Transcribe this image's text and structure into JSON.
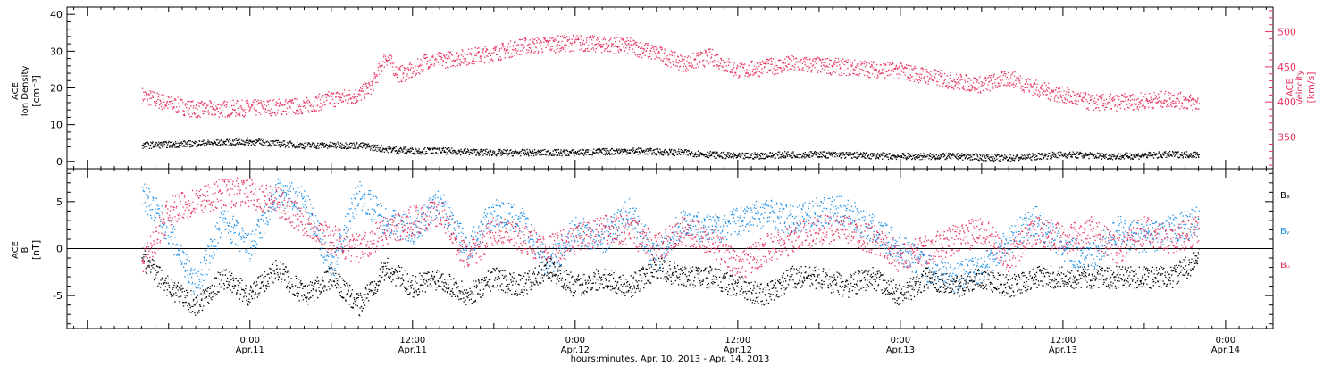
{
  "chart_data": [
    {
      "type": "scatter",
      "panel": "plasma",
      "ylabel_left": [
        "ACE",
        "Ion Density",
        "[cm⁻³]"
      ],
      "ylabel_right": [
        "ACE",
        "Velocity",
        "[km/s]"
      ],
      "ylim_left": [
        -2,
        42
      ],
      "ylim_right": [
        305,
        535
      ],
      "yticks_left": [
        "0",
        "10",
        "20",
        "30",
        "40"
      ],
      "yticks_left_values": [
        0,
        10,
        20,
        30,
        40
      ],
      "yticks_right": [
        "350",
        "400",
        "450",
        "500"
      ],
      "yticks_right_values": [
        350,
        400,
        450,
        500
      ],
      "series": [
        {
          "name": "Ion Density",
          "color": "#000000",
          "axis": "left",
          "hours": [
            -8,
            -4,
            0,
            4,
            8,
            10,
            12,
            14,
            18,
            24,
            28,
            32,
            36,
            40,
            42,
            48,
            52,
            56,
            60,
            64,
            68,
            70
          ],
          "values": [
            4.5,
            5,
            5.5,
            4.5,
            4.5,
            3.5,
            3,
            3,
            2.5,
            2.5,
            3,
            2.5,
            1.5,
            2,
            2,
            1.5,
            1.5,
            1,
            2,
            1.5,
            2,
            2
          ]
        },
        {
          "name": "Velocity",
          "color": "#e8325e",
          "axis": "right",
          "hours": [
            -8,
            -6,
            -4,
            0,
            4,
            6,
            8,
            9,
            10,
            11,
            12,
            13,
            14,
            16,
            18,
            20,
            24,
            28,
            30,
            32,
            34,
            36,
            38,
            40,
            44,
            48,
            52,
            54,
            56,
            58,
            60,
            62,
            64,
            68,
            70
          ],
          "values": [
            410,
            398,
            390,
            392,
            395,
            405,
            410,
            425,
            465,
            440,
            445,
            460,
            460,
            465,
            470,
            480,
            485,
            480,
            470,
            455,
            465,
            445,
            450,
            455,
            450,
            445,
            430,
            425,
            435,
            420,
            410,
            400,
            400,
            405,
            398
          ]
        }
      ]
    },
    {
      "type": "scatter",
      "panel": "magnetic-field",
      "ylabel_left": [
        "ACE",
        "B",
        "[nT]"
      ],
      "ylim": [
        -8.5,
        8.5
      ],
      "yticks_left": [
        "-5",
        "0",
        "5"
      ],
      "yticks_left_values": [
        -5,
        0,
        5
      ],
      "zero_line": true,
      "legend_placement": "right",
      "series": [
        {
          "name": "Bₓ",
          "color": "#000000",
          "hours": [
            -8,
            -6,
            -4,
            -2,
            0,
            2,
            4,
            6,
            8,
            10,
            12,
            14,
            16,
            18,
            20,
            22,
            24,
            26,
            28,
            30,
            32,
            34,
            36,
            38,
            40,
            42,
            44,
            46,
            48,
            50,
            52,
            54,
            56,
            58,
            60,
            62,
            64,
            66,
            68,
            70
          ],
          "values": [
            -1,
            -4,
            -6,
            -3,
            -5,
            -2,
            -5,
            -3,
            -6,
            -2,
            -4,
            -3,
            -5,
            -3,
            -4,
            -2,
            -4,
            -3,
            -4,
            -2,
            -3,
            -3,
            -4,
            -5,
            -3,
            -3,
            -4,
            -3,
            -5,
            -3,
            -4,
            -3,
            -4,
            -3,
            -3,
            -3,
            -3,
            -3,
            -3,
            -1
          ]
        },
        {
          "name": "Bᵧ",
          "color": "#1e8fe6",
          "hours": [
            -8,
            -6,
            -4,
            -2,
            0,
            2,
            4,
            6,
            8,
            10,
            12,
            14,
            16,
            18,
            20,
            22,
            24,
            26,
            28,
            30,
            32,
            34,
            36,
            38,
            40,
            42,
            44,
            46,
            48,
            50,
            52,
            54,
            56,
            58,
            60,
            62,
            64,
            66,
            68,
            70
          ],
          "values": [
            6,
            2,
            -4,
            3,
            0,
            6,
            5,
            -2,
            6,
            3,
            2,
            5,
            0,
            4,
            3,
            -2,
            2,
            1,
            4,
            -1,
            3,
            2,
            3,
            4,
            3,
            4,
            4,
            2,
            0,
            -2,
            -3,
            -2,
            1,
            3,
            0,
            -1,
            2,
            1,
            2,
            3
          ]
        },
        {
          "name": "Bᵤ",
          "color": "#e8325e",
          "hours": [
            -8,
            -6,
            -4,
            -2,
            0,
            2,
            4,
            6,
            8,
            10,
            12,
            14,
            16,
            18,
            20,
            22,
            24,
            26,
            28,
            30,
            32,
            34,
            36,
            38,
            40,
            42,
            44,
            46,
            48,
            50,
            52,
            54,
            56,
            58,
            60,
            62,
            64,
            66,
            68,
            70
          ],
          "values": [
            -2,
            4,
            5,
            6,
            6,
            5,
            3,
            1,
            0,
            2,
            3,
            4,
            -1,
            2,
            1,
            0,
            1,
            2,
            2,
            0,
            2,
            1,
            -2,
            0,
            1,
            2,
            2,
            1,
            -1,
            0,
            1,
            2,
            -1,
            2,
            1,
            2,
            0,
            2,
            1,
            2
          ]
        }
      ]
    }
  ],
  "x_axis": {
    "xlim_hours": [
      -13.5,
      75.5
    ],
    "ticks": [
      {
        "hours": 0,
        "time": "0:00",
        "date": "Apr.11"
      },
      {
        "hours": 12,
        "time": "12:00",
        "date": "Apr.11"
      },
      {
        "hours": 24,
        "time": "0:00",
        "date": "Apr.12"
      },
      {
        "hours": 36,
        "time": "12:00",
        "date": "Apr.12"
      },
      {
        "hours": 48,
        "time": "0:00",
        "date": "Apr.13"
      },
      {
        "hours": 60,
        "time": "12:00",
        "date": "Apr.13"
      },
      {
        "hours": 72,
        "time": "0:00",
        "date": "Apr.14"
      }
    ],
    "xlabel": "hours:minutes, Apr. 10, 2013 - Apr. 14, 2013"
  }
}
